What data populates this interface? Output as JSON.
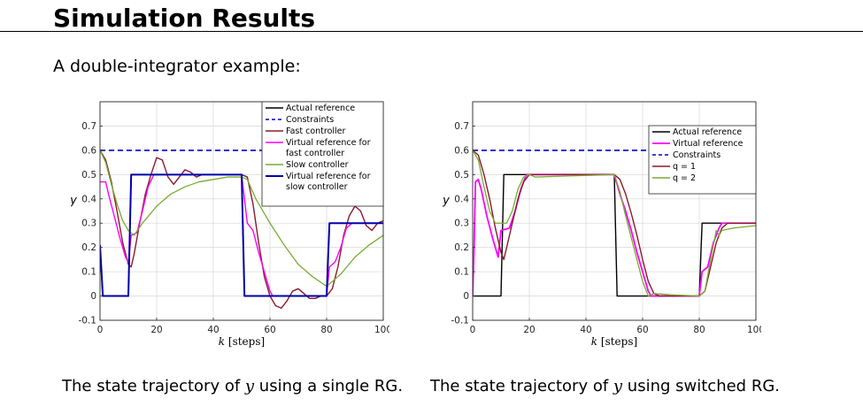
{
  "slide": {
    "title": "Simulation Results",
    "subtitle": "A double-integrator example:"
  },
  "captions": {
    "left": {
      "pre": "The state trajectory of ",
      "var": "y",
      "post": " using a single RG."
    },
    "right": {
      "pre": "The state trajectory of ",
      "var": "y",
      "post": " using switched RG."
    }
  },
  "chart_data": [
    {
      "type": "line",
      "xlabel_var": "k",
      "xlabel_unit": "[steps]",
      "ylabel": "y",
      "xlim": [
        0,
        100
      ],
      "ylim": [
        -0.1,
        0.8
      ],
      "xticks": [
        0,
        20,
        40,
        60,
        80,
        100
      ],
      "yticks": [
        -0.1,
        0,
        0.1,
        0.2,
        0.3,
        0.4,
        0.5,
        0.6,
        0.7
      ],
      "grid": true,
      "legend_position": "top-right",
      "series": [
        {
          "name": "Actual reference",
          "color": "#000000",
          "dash": "solid",
          "width": 1.4,
          "points": [
            [
              0,
              0.2
            ],
            [
              1,
              0
            ],
            [
              10,
              0
            ],
            [
              11,
              0.5
            ],
            [
              50,
              0.5
            ],
            [
              51,
              0
            ],
            [
              80,
              0
            ],
            [
              81,
              0.3
            ],
            [
              100,
              0.3
            ]
          ]
        },
        {
          "name": "Constraints",
          "color": "#0000cc",
          "dash": "dashed",
          "width": 1.6,
          "points": [
            [
              0,
              0.6
            ],
            [
              100,
              0.6
            ]
          ]
        },
        {
          "name": "Fast controller",
          "color": "#8b1a2e",
          "dash": "solid",
          "width": 1.4,
          "points": [
            [
              0,
              0.6
            ],
            [
              2,
              0.56
            ],
            [
              4,
              0.47
            ],
            [
              6,
              0.35
            ],
            [
              8,
              0.22
            ],
            [
              10,
              0.13
            ],
            [
              11,
              0.12
            ],
            [
              12,
              0.17
            ],
            [
              14,
              0.3
            ],
            [
              16,
              0.42
            ],
            [
              18,
              0.5
            ],
            [
              20,
              0.57
            ],
            [
              22,
              0.56
            ],
            [
              24,
              0.49
            ],
            [
              26,
              0.46
            ],
            [
              28,
              0.49
            ],
            [
              30,
              0.52
            ],
            [
              32,
              0.51
            ],
            [
              34,
              0.49
            ],
            [
              36,
              0.5
            ],
            [
              40,
              0.5
            ],
            [
              50,
              0.5
            ],
            [
              52,
              0.49
            ],
            [
              54,
              0.38
            ],
            [
              56,
              0.22
            ],
            [
              58,
              0.08
            ],
            [
              60,
              0.0
            ],
            [
              62,
              -0.04
            ],
            [
              64,
              -0.05
            ],
            [
              66,
              -0.02
            ],
            [
              68,
              0.02
            ],
            [
              70,
              0.03
            ],
            [
              72,
              0.01
            ],
            [
              74,
              -0.01
            ],
            [
              76,
              -0.01
            ],
            [
              78,
              0.0
            ],
            [
              80,
              0.0
            ],
            [
              82,
              0.03
            ],
            [
              84,
              0.12
            ],
            [
              86,
              0.25
            ],
            [
              88,
              0.33
            ],
            [
              90,
              0.37
            ],
            [
              92,
              0.35
            ],
            [
              94,
              0.29
            ],
            [
              96,
              0.27
            ],
            [
              98,
              0.3
            ],
            [
              100,
              0.31
            ]
          ]
        },
        {
          "name": "Virtual reference for fast controller",
          "color": "#ff00ff",
          "dash": "solid",
          "width": 1.4,
          "points": [
            [
              0,
              0.47
            ],
            [
              2,
              0.47
            ],
            [
              3,
              0.42
            ],
            [
              5,
              0.33
            ],
            [
              7,
              0.24
            ],
            [
              9,
              0.16
            ],
            [
              10,
              0.14
            ],
            [
              11,
              0.25
            ],
            [
              13,
              0.26
            ],
            [
              15,
              0.35
            ],
            [
              17,
              0.45
            ],
            [
              19,
              0.5
            ],
            [
              21,
              0.5
            ],
            [
              50,
              0.5
            ],
            [
              51,
              0.4
            ],
            [
              52,
              0.3
            ],
            [
              54,
              0.27
            ],
            [
              56,
              0.18
            ],
            [
              58,
              0.1
            ],
            [
              60,
              0.02
            ],
            [
              61,
              0
            ],
            [
              80,
              0
            ],
            [
              81,
              0.12
            ],
            [
              83,
              0.14
            ],
            [
              85,
              0.2
            ],
            [
              87,
              0.28
            ],
            [
              89,
              0.3
            ],
            [
              100,
              0.3
            ]
          ]
        },
        {
          "name": "Slow controller",
          "color": "#77ac30",
          "dash": "solid",
          "width": 1.3,
          "points": [
            [
              0,
              0.6
            ],
            [
              2,
              0.55
            ],
            [
              4,
              0.46
            ],
            [
              6,
              0.38
            ],
            [
              8,
              0.31
            ],
            [
              10,
              0.27
            ],
            [
              12,
              0.25
            ],
            [
              15,
              0.3
            ],
            [
              20,
              0.37
            ],
            [
              25,
              0.42
            ],
            [
              30,
              0.45
            ],
            [
              35,
              0.47
            ],
            [
              40,
              0.48
            ],
            [
              45,
              0.49
            ],
            [
              50,
              0.49
            ],
            [
              52,
              0.48
            ],
            [
              55,
              0.4
            ],
            [
              60,
              0.3
            ],
            [
              65,
              0.21
            ],
            [
              70,
              0.13
            ],
            [
              75,
              0.08
            ],
            [
              80,
              0.04
            ],
            [
              85,
              0.09
            ],
            [
              90,
              0.16
            ],
            [
              95,
              0.21
            ],
            [
              100,
              0.25
            ]
          ]
        },
        {
          "name": "Virtual reference for slow controller",
          "color": "#0000aa",
          "dash": "solid",
          "width": 2.0,
          "points": [
            [
              0,
              0.21
            ],
            [
              1,
              0
            ],
            [
              10,
              0
            ],
            [
              11,
              0.5
            ],
            [
              50,
              0.5
            ],
            [
              51,
              0
            ],
            [
              80,
              0
            ],
            [
              81,
              0.3
            ],
            [
              100,
              0.3
            ]
          ]
        }
      ]
    },
    {
      "type": "line",
      "xlabel_var": "k",
      "xlabel_unit": "[steps]",
      "ylabel": "y",
      "xlim": [
        0,
        100
      ],
      "ylim": [
        -0.1,
        0.8
      ],
      "xticks": [
        0,
        20,
        40,
        60,
        80,
        100
      ],
      "yticks": [
        -0.1,
        0,
        0.1,
        0.2,
        0.3,
        0.4,
        0.5,
        0.6,
        0.7
      ],
      "grid": true,
      "legend_position": "top-right",
      "series": [
        {
          "name": "Actual reference",
          "color": "#000000",
          "dash": "solid",
          "width": 1.4,
          "points": [
            [
              0,
              0
            ],
            [
              10,
              0
            ],
            [
              11,
              0.5
            ],
            [
              50,
              0.5
            ],
            [
              51,
              0
            ],
            [
              80,
              0
            ],
            [
              81,
              0.3
            ],
            [
              100,
              0.3
            ]
          ]
        },
        {
          "name": "Virtual reference",
          "color": "#ff00ff",
          "dash": "solid",
          "width": 1.8,
          "points": [
            [
              0,
              0
            ],
            [
              0.5,
              0.2
            ],
            [
              1,
              0.47
            ],
            [
              2,
              0.48
            ],
            [
              3,
              0.44
            ],
            [
              5,
              0.33
            ],
            [
              7,
              0.24
            ],
            [
              9,
              0.16
            ],
            [
              10,
              0.27
            ],
            [
              13,
              0.28
            ],
            [
              15,
              0.35
            ],
            [
              17,
              0.44
            ],
            [
              19,
              0.5
            ],
            [
              50,
              0.5
            ],
            [
              52,
              0.42
            ],
            [
              54,
              0.35
            ],
            [
              56,
              0.27
            ],
            [
              58,
              0.18
            ],
            [
              60,
              0.1
            ],
            [
              62,
              0.02
            ],
            [
              63,
              0
            ],
            [
              80,
              0
            ],
            [
              81,
              0.1
            ],
            [
              83,
              0.12
            ],
            [
              85,
              0.22
            ],
            [
              87,
              0.28
            ],
            [
              88,
              0.3
            ],
            [
              100,
              0.3
            ]
          ]
        },
        {
          "name": "Constraints",
          "color": "#0000cc",
          "dash": "dashed",
          "width": 1.6,
          "points": [
            [
              0,
              0.6
            ],
            [
              100,
              0.6
            ]
          ]
        },
        {
          "name": "q = 1",
          "color": "#8b1a2e",
          "dash": "solid",
          "width": 1.4,
          "points": [
            [
              0,
              0.6
            ],
            [
              2,
              0.58
            ],
            [
              4,
              0.5
            ],
            [
              6,
              0.4
            ],
            [
              8,
              0.28
            ],
            [
              10,
              0.18
            ],
            [
              11,
              0.15
            ],
            [
              12,
              0.2
            ],
            [
              14,
              0.3
            ],
            [
              16,
              0.4
            ],
            [
              18,
              0.47
            ],
            [
              20,
              0.5
            ],
            [
              50,
              0.5
            ],
            [
              52,
              0.48
            ],
            [
              54,
              0.42
            ],
            [
              56,
              0.34
            ],
            [
              58,
              0.25
            ],
            [
              60,
              0.15
            ],
            [
              62,
              0.06
            ],
            [
              64,
              0.01
            ],
            [
              66,
              0
            ],
            [
              80,
              0
            ],
            [
              82,
              0.02
            ],
            [
              84,
              0.12
            ],
            [
              86,
              0.22
            ],
            [
              88,
              0.28
            ],
            [
              90,
              0.3
            ],
            [
              100,
              0.3
            ]
          ]
        },
        {
          "name": "q = 2",
          "color": "#77ac30",
          "dash": "solid",
          "width": 1.3,
          "points": [
            [
              0,
              0.6
            ],
            [
              2,
              0.56
            ],
            [
              4,
              0.45
            ],
            [
              6,
              0.35
            ],
            [
              8,
              0.3
            ],
            [
              10,
              0.3
            ],
            [
              12,
              0.3
            ],
            [
              14,
              0.35
            ],
            [
              16,
              0.44
            ],
            [
              18,
              0.49
            ],
            [
              20,
              0.5
            ],
            [
              22,
              0.49
            ],
            [
              50,
              0.5
            ],
            [
              52,
              0.43
            ],
            [
              54,
              0.33
            ],
            [
              56,
              0.24
            ],
            [
              58,
              0.15
            ],
            [
              60,
              0.06
            ],
            [
              62,
              0.0
            ],
            [
              64,
              0.01
            ],
            [
              70,
              0.005
            ],
            [
              80,
              0
            ],
            [
              82,
              0.02
            ],
            [
              84,
              0.15
            ],
            [
              86,
              0.27
            ],
            [
              87,
              0.25
            ],
            [
              88,
              0.27
            ],
            [
              92,
              0.28
            ],
            [
              100,
              0.29
            ]
          ]
        }
      ]
    }
  ]
}
